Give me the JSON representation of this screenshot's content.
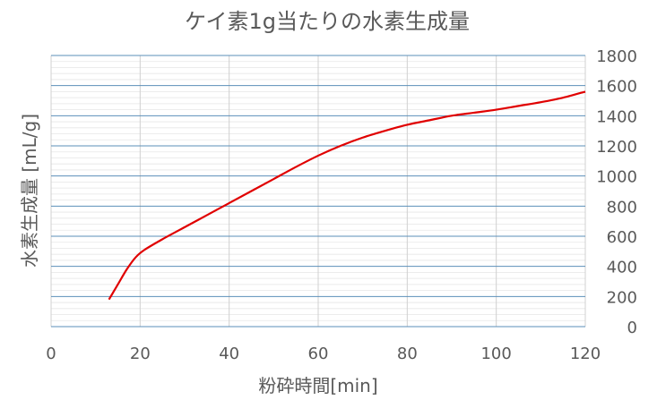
{
  "chart_data": {
    "type": "line",
    "title": "ケイ素1g当たりの水素生成量",
    "xlabel": "粉砕時間[min]",
    "ylabel": "水素生成量 [mL/g]",
    "xlim": [
      0,
      120
    ],
    "ylim": [
      0,
      1800
    ],
    "x_ticks": [
      "0",
      "20",
      "40",
      "60",
      "80",
      "100",
      "120"
    ],
    "y_ticks": [
      "0",
      "200",
      "400",
      "600",
      "800",
      "1000",
      "1200",
      "1400",
      "1600",
      "1800"
    ],
    "y_axis_side": "right",
    "grid": true,
    "series": [
      {
        "color": "#e00000",
        "x": [
          13,
          15,
          17,
          19,
          21,
          25,
          30,
          35,
          40,
          45,
          50,
          55,
          60,
          65,
          70,
          75,
          80,
          85,
          90,
          95,
          100,
          105,
          110,
          115,
          120
        ],
        "y": [
          180,
          280,
          380,
          460,
          510,
          580,
          660,
          740,
          820,
          900,
          980,
          1060,
          1135,
          1200,
          1255,
          1300,
          1340,
          1370,
          1400,
          1420,
          1440,
          1465,
          1490,
          1520,
          1560
        ]
      }
    ]
  }
}
